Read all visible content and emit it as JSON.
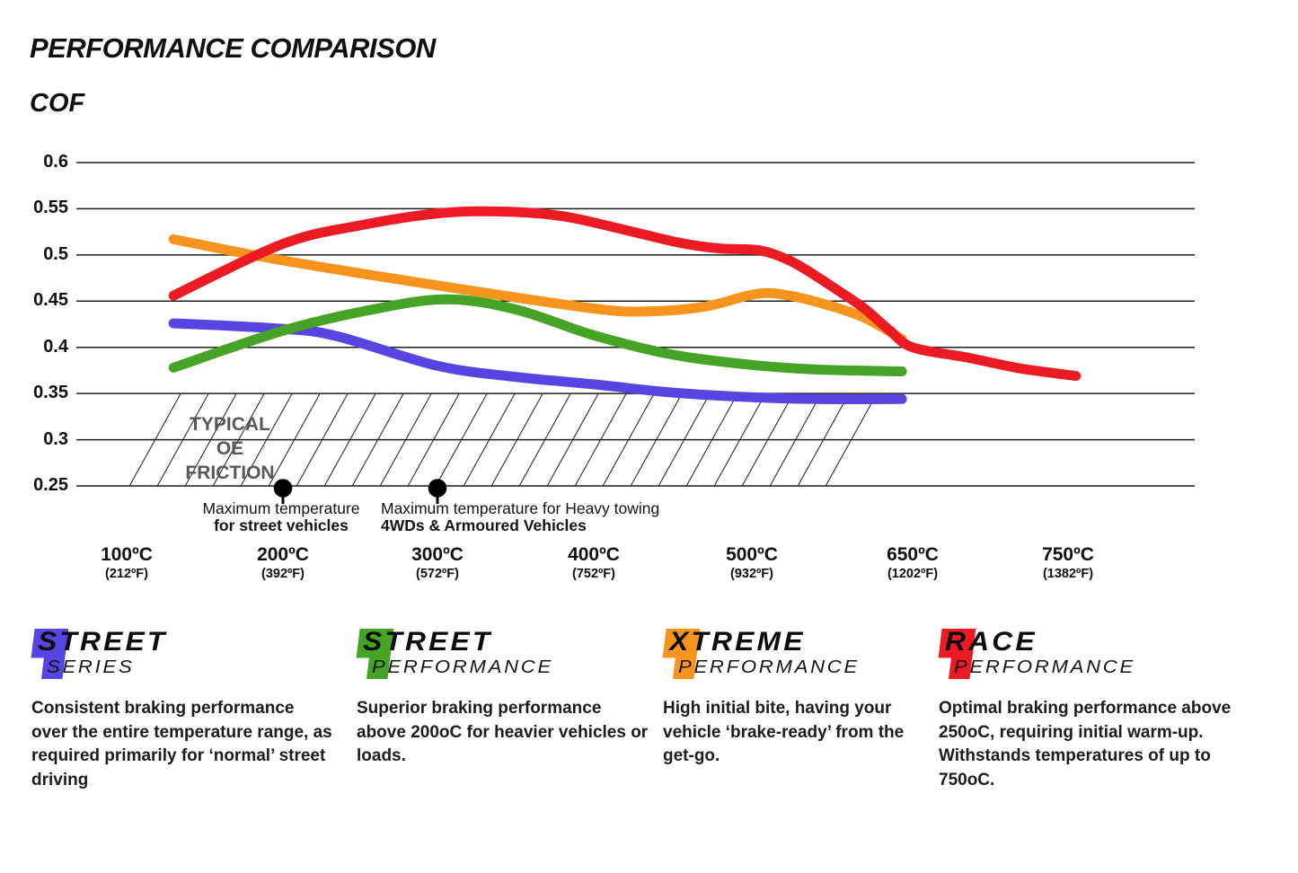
{
  "title": "PERFORMANCE COMPARISON",
  "y_axis_label": "COF",
  "chart_data": {
    "type": "line",
    "title": "PERFORMANCE COMPARISON",
    "ylabel": "COF",
    "ylim": [
      0.25,
      0.6
    ],
    "grid": true,
    "x_ticks": [
      {
        "temp": 100,
        "label_c": "100ºC",
        "label_f": "(212ºF)"
      },
      {
        "temp": 200,
        "label_c": "200ºC",
        "label_f": "(392ºF)"
      },
      {
        "temp": 300,
        "label_c": "300ºC",
        "label_f": "(572ºF)"
      },
      {
        "temp": 400,
        "label_c": "400ºC",
        "label_f": "(752ºF)"
      },
      {
        "temp": 500,
        "label_c": "500ºC",
        "label_f": "(932ºF)"
      },
      {
        "temp": 650,
        "label_c": "650ºC",
        "label_f": "(1202ºF)"
      },
      {
        "temp": 750,
        "label_c": "750ºC",
        "label_f": "(1382ºF)"
      }
    ],
    "y_ticks": [
      {
        "value": 0.6,
        "label": "0.6"
      },
      {
        "value": 0.55,
        "label": "0.55"
      },
      {
        "value": 0.5,
        "label": "0.5"
      },
      {
        "value": 0.45,
        "label": "0.45"
      },
      {
        "value": 0.4,
        "label": "0.4"
      },
      {
        "value": 0.35,
        "label": "0.35"
      },
      {
        "value": 0.3,
        "label": "0.3"
      },
      {
        "value": 0.25,
        "label": "0.25"
      }
    ],
    "series": [
      {
        "name": "Street Series",
        "color": "#5645E2",
        "points": [
          [
            130,
            0.426
          ],
          [
            200,
            0.42
          ],
          [
            235,
            0.412
          ],
          [
            300,
            0.38
          ],
          [
            350,
            0.368
          ],
          [
            400,
            0.36
          ],
          [
            450,
            0.351
          ],
          [
            500,
            0.346
          ],
          [
            560,
            0.344
          ],
          [
            640,
            0.344
          ]
        ]
      },
      {
        "name": "Street Performance",
        "color": "#45A426",
        "points": [
          [
            130,
            0.378
          ],
          [
            200,
            0.418
          ],
          [
            255,
            0.44
          ],
          [
            305,
            0.452
          ],
          [
            350,
            0.441
          ],
          [
            400,
            0.413
          ],
          [
            450,
            0.392
          ],
          [
            500,
            0.381
          ],
          [
            560,
            0.376
          ],
          [
            640,
            0.374
          ]
        ]
      },
      {
        "name": "Xtreme Performance",
        "color": "#F7941D",
        "points": [
          [
            130,
            0.517
          ],
          [
            200,
            0.494
          ],
          [
            300,
            0.467
          ],
          [
            400,
            0.442
          ],
          [
            435,
            0.439
          ],
          [
            470,
            0.444
          ],
          [
            505,
            0.458
          ],
          [
            535,
            0.456
          ],
          [
            570,
            0.446
          ],
          [
            605,
            0.432
          ],
          [
            640,
            0.409
          ]
        ]
      },
      {
        "name": "Race Performance",
        "color": "#EC1B23",
        "points": [
          [
            130,
            0.456
          ],
          [
            200,
            0.512
          ],
          [
            250,
            0.532
          ],
          [
            300,
            0.545
          ],
          [
            340,
            0.547
          ],
          [
            380,
            0.542
          ],
          [
            420,
            0.527
          ],
          [
            455,
            0.513
          ],
          [
            480,
            0.507
          ],
          [
            507,
            0.505
          ],
          [
            535,
            0.494
          ],
          [
            560,
            0.477
          ],
          [
            585,
            0.458
          ],
          [
            605,
            0.442
          ],
          [
            628,
            0.419
          ],
          [
            650,
            0.4
          ],
          [
            685,
            0.389
          ],
          [
            720,
            0.377
          ],
          [
            755,
            0.369
          ]
        ]
      }
    ],
    "oe_band": {
      "label_line1": "TYPICAL OE",
      "label_line2": "FRICTION",
      "cof_range": [
        0.25,
        0.35
      ],
      "temp_range": [
        130,
        640
      ]
    },
    "annotations": [
      {
        "temp": 200,
        "line1": "Maximum temperature",
        "line2": "for street vehicles"
      },
      {
        "temp": 300,
        "line1": "Maximum temperature for Heavy towing",
        "line2": "4WDs & Armoured Vehicles"
      }
    ]
  },
  "legend": [
    {
      "brand_line1": "STREET",
      "brand_line2": "SERIES",
      "color": "#5645E2",
      "description": "Consistent braking performance over the entire temperature range, as required primarily for ‘normal’ street driving"
    },
    {
      "brand_line1": "STREET",
      "brand_line2": "PERFORMANCE",
      "color": "#45A426",
      "description": "Superior braking performance above 200oC for heavier vehicles or loads."
    },
    {
      "brand_line1": "XTREME",
      "brand_line2": "PERFORMANCE",
      "color": "#F7941D",
      "description": "High initial bite, having your vehicle ‘brake-ready’ from the get-go."
    },
    {
      "brand_line1": "RACE",
      "brand_line2": "PERFORMANCE",
      "color": "#EC1B23",
      "description": "Optimal braking performance above 250oC, requiring initial warm-up. Withstands temperatures of up to 750oC."
    }
  ]
}
